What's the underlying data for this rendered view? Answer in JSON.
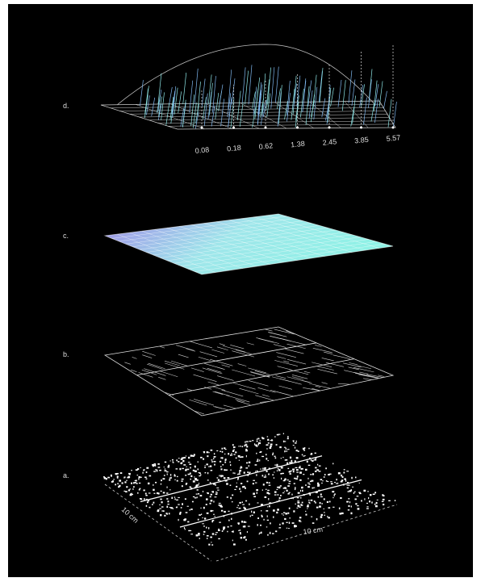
{
  "panels": [
    {
      "label": "d."
    },
    {
      "label": "c."
    },
    {
      "label": "b."
    },
    {
      "label": "a."
    }
  ],
  "d_values": [
    "0.08",
    "0.18",
    "0.62",
    "1.38",
    "2.45",
    "3.85",
    "5.57"
  ],
  "scale": {
    "depth": "10 cm",
    "width": "10 cm"
  }
}
